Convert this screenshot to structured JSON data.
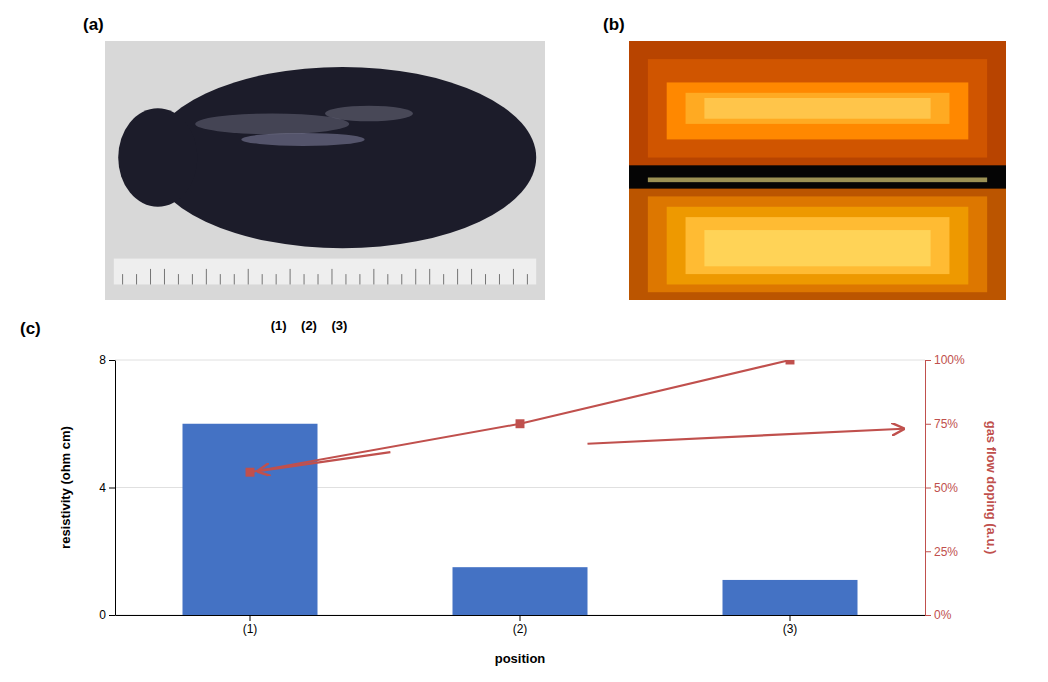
{
  "chart_data": {
    "type": "bar",
    "categories": [
      "(1)",
      "(2)",
      "(3)"
    ],
    "series": [
      {
        "type": "bar",
        "color": "#4472C4",
        "values": [
          6.0,
          1.5,
          1.1
        ]
      },
      {
        "type": "line",
        "axis": "y2",
        "color": "#C0504D",
        "marker": "square",
        "values": [
          56,
          75,
          100
        ]
      }
    ],
    "xlabel": "position",
    "ylabel": "resistivity (ohm cm)",
    "y2label": "gas flow doping (a.u.)",
    "ylim": [
      0,
      8
    ],
    "yticks": [
      0,
      4,
      8
    ],
    "y2lim": [
      0,
      100
    ],
    "y2ticks": [
      {
        "value": 0,
        "label": "0%"
      },
      {
        "value": 25,
        "label": "25%"
      },
      {
        "value": 50,
        "label": "50%"
      },
      {
        "value": 75,
        "label": "75%"
      },
      {
        "value": 100,
        "label": "100%"
      }
    ],
    "grid": true,
    "annotations": [
      "(a)",
      "(1)    (2)    (3)",
      "(b)",
      "(c)"
    ]
  }
}
